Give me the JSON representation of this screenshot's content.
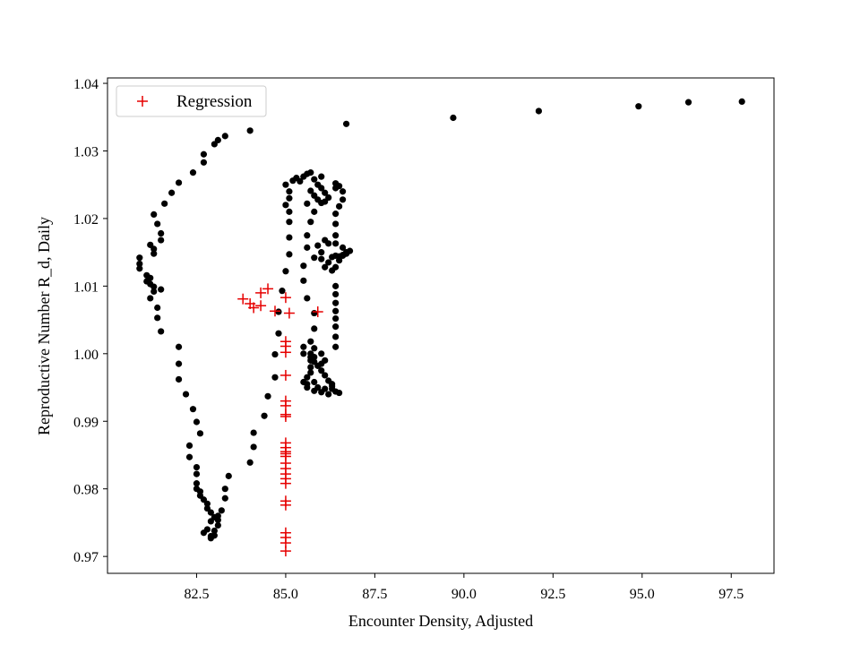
{
  "chart_data": {
    "type": "scatter",
    "title": "",
    "xlabel": "Encounter Density, Adjusted",
    "ylabel": "Reproductive Number R_d, Daily",
    "xlim": [
      80.0,
      98.7
    ],
    "ylim": [
      0.9675,
      1.0408
    ],
    "xticks": [
      82.5,
      85.0,
      87.5,
      90.0,
      92.5,
      95.0,
      97.5
    ],
    "xtick_labels": [
      "82.5",
      "85.0",
      "87.5",
      "90.0",
      "92.5",
      "95.0",
      "97.5"
    ],
    "yticks": [
      0.97,
      0.98,
      0.99,
      1.0,
      1.01,
      1.02,
      1.03,
      1.04
    ],
    "ytick_labels": [
      "0.97",
      "0.98",
      "0.99",
      "1.00",
      "1.01",
      "1.02",
      "1.03",
      "1.04"
    ],
    "grid": false,
    "legend": {
      "placement": "top-left",
      "entries": [
        "Regression"
      ]
    },
    "series": [
      {
        "marker": "dot",
        "color": "#000000",
        "points": [
          [
            97.8,
            1.0373
          ],
          [
            96.3,
            1.0372
          ],
          [
            94.9,
            1.0366
          ],
          [
            92.1,
            1.0359
          ],
          [
            89.7,
            1.0349
          ],
          [
            86.7,
            1.034
          ],
          [
            84.0,
            1.033
          ],
          [
            83.3,
            1.0322
          ],
          [
            83.1,
            1.0316
          ],
          [
            83.0,
            1.031
          ],
          [
            82.7,
            1.0295
          ],
          [
            82.7,
            1.0283
          ],
          [
            82.4,
            1.0268
          ],
          [
            82.0,
            1.0253
          ],
          [
            81.8,
            1.0238
          ],
          [
            81.6,
            1.0222
          ],
          [
            81.3,
            1.0206
          ],
          [
            81.4,
            1.0192
          ],
          [
            81.5,
            1.0178
          ],
          [
            81.5,
            1.0168
          ],
          [
            81.2,
            1.0161
          ],
          [
            81.3,
            1.0155
          ],
          [
            81.3,
            1.0148
          ],
          [
            80.9,
            1.0142
          ],
          [
            80.9,
            1.0133
          ],
          [
            80.9,
            1.0126
          ],
          [
            81.1,
            1.0116
          ],
          [
            81.2,
            1.0112
          ],
          [
            81.1,
            1.0107
          ],
          [
            81.2,
            1.0103
          ],
          [
            81.3,
            1.0099
          ],
          [
            81.5,
            1.0095
          ],
          [
            81.3,
            1.0092
          ],
          [
            81.2,
            1.0082
          ],
          [
            81.4,
            1.0068
          ],
          [
            81.4,
            1.0053
          ],
          [
            81.5,
            1.0033
          ],
          [
            82.0,
            1.001
          ],
          [
            82.0,
            0.9985
          ],
          [
            82.0,
            0.9962
          ],
          [
            82.2,
            0.994
          ],
          [
            82.4,
            0.9918
          ],
          [
            82.5,
            0.9899
          ],
          [
            82.6,
            0.9882
          ],
          [
            82.3,
            0.9864
          ],
          [
            82.3,
            0.9847
          ],
          [
            82.5,
            0.9832
          ],
          [
            82.5,
            0.9822
          ],
          [
            82.5,
            0.9808
          ],
          [
            82.5,
            0.98
          ],
          [
            82.6,
            0.9796
          ],
          [
            82.6,
            0.979
          ],
          [
            82.7,
            0.9784
          ],
          [
            82.8,
            0.9778
          ],
          [
            82.8,
            0.9771
          ],
          [
            82.9,
            0.9765
          ],
          [
            83.0,
            0.9758
          ],
          [
            82.9,
            0.9752
          ],
          [
            82.8,
            0.974
          ],
          [
            82.7,
            0.9735
          ],
          [
            82.9,
            0.973
          ],
          [
            82.9,
            0.9727
          ],
          [
            83.0,
            0.9731
          ],
          [
            83.0,
            0.9738
          ],
          [
            83.1,
            0.9746
          ],
          [
            83.1,
            0.9754
          ],
          [
            83.1,
            0.976
          ],
          [
            83.2,
            0.9768
          ],
          [
            83.3,
            0.9786
          ],
          [
            83.3,
            0.98
          ],
          [
            83.4,
            0.9819
          ],
          [
            84.0,
            0.9839
          ],
          [
            84.1,
            0.9862
          ],
          [
            84.1,
            0.9883
          ],
          [
            84.4,
            0.9908
          ],
          [
            84.5,
            0.9937
          ],
          [
            84.7,
            0.9965
          ],
          [
            84.7,
            0.9999
          ],
          [
            84.8,
            1.003
          ],
          [
            84.8,
            1.0062
          ],
          [
            84.9,
            1.0093
          ],
          [
            85.0,
            1.0122
          ],
          [
            85.1,
            1.0147
          ],
          [
            85.1,
            1.0172
          ],
          [
            85.1,
            1.0195
          ],
          [
            85.1,
            1.021
          ],
          [
            85.0,
            1.022
          ],
          [
            85.1,
            1.023
          ],
          [
            85.1,
            1.024
          ],
          [
            85.0,
            1.025
          ],
          [
            85.2,
            1.0256
          ],
          [
            85.3,
            1.026
          ],
          [
            85.4,
            1.0255
          ],
          [
            85.5,
            1.0262
          ],
          [
            85.6,
            1.0266
          ],
          [
            85.7,
            1.0268
          ],
          [
            85.8,
            1.0258
          ],
          [
            85.9,
            1.025
          ],
          [
            86.0,
            1.0262
          ],
          [
            86.0,
            1.0245
          ],
          [
            86.1,
            1.0238
          ],
          [
            85.7,
            1.0241
          ],
          [
            85.8,
            1.0234
          ],
          [
            85.9,
            1.0228
          ],
          [
            86.0,
            1.0223
          ],
          [
            86.2,
            1.0231
          ],
          [
            86.1,
            1.0225
          ],
          [
            85.8,
            1.021
          ],
          [
            85.7,
            1.0195
          ],
          [
            85.6,
            1.0175
          ],
          [
            85.6,
            1.0157
          ],
          [
            85.9,
            1.016
          ],
          [
            86.1,
            1.0168
          ],
          [
            86.2,
            1.0163
          ],
          [
            86.0,
            1.015
          ],
          [
            85.8,
            1.0142
          ],
          [
            86.0,
            1.014
          ],
          [
            86.2,
            1.0135
          ],
          [
            86.1,
            1.0128
          ],
          [
            86.3,
            1.0123
          ],
          [
            86.4,
            1.0128
          ],
          [
            86.5,
            1.0138
          ],
          [
            86.6,
            1.0145
          ],
          [
            86.7,
            1.0148
          ],
          [
            86.8,
            1.0152
          ],
          [
            86.6,
            1.0157
          ],
          [
            86.4,
            1.0163
          ],
          [
            86.4,
            1.0175
          ],
          [
            86.4,
            1.0192
          ],
          [
            86.4,
            1.0207
          ],
          [
            86.5,
            1.0218
          ],
          [
            86.6,
            1.0228
          ],
          [
            86.6,
            1.024
          ],
          [
            86.5,
            1.0248
          ],
          [
            86.4,
            1.0252
          ],
          [
            86.4,
            1.0245
          ],
          [
            85.6,
            1.0222
          ],
          [
            85.5,
            1.013
          ],
          [
            85.5,
            1.0108
          ],
          [
            85.6,
            1.0082
          ],
          [
            85.8,
            1.006
          ],
          [
            85.8,
            1.0037
          ],
          [
            85.7,
            1.0018
          ],
          [
            85.5,
            1.001
          ],
          [
            85.5,
            1.0
          ],
          [
            85.7,
            0.9995
          ],
          [
            85.8,
            0.9988
          ],
          [
            85.9,
            0.9982
          ],
          [
            86.0,
            0.9975
          ],
          [
            86.1,
            0.9968
          ],
          [
            86.2,
            0.996
          ],
          [
            86.3,
            0.9952
          ],
          [
            86.4,
            0.9944
          ],
          [
            86.5,
            0.9942
          ],
          [
            86.3,
            0.9948
          ],
          [
            86.2,
            0.994
          ],
          [
            86.0,
            0.9943
          ],
          [
            85.9,
            0.995
          ],
          [
            85.8,
            0.9958
          ],
          [
            85.6,
            0.9955
          ],
          [
            85.6,
            0.9965
          ],
          [
            85.7,
            0.9972
          ],
          [
            85.7,
            0.998
          ],
          [
            85.7,
            0.999
          ],
          [
            85.7,
            1.0
          ],
          [
            85.8,
            1.0008
          ],
          [
            86.0,
            1.0
          ],
          [
            85.8,
            0.9995
          ],
          [
            86.0,
            0.9985
          ],
          [
            86.1,
            0.999
          ],
          [
            85.5,
            0.9958
          ],
          [
            85.6,
            0.995
          ],
          [
            85.8,
            0.9945
          ],
          [
            86.1,
            0.9948
          ],
          [
            86.3,
            0.9955
          ],
          [
            86.4,
            1.001
          ],
          [
            86.4,
            1.0025
          ],
          [
            86.4,
            1.004
          ],
          [
            86.4,
            1.0052
          ],
          [
            86.4,
            1.0063
          ],
          [
            86.4,
            1.0075
          ],
          [
            86.4,
            1.0088
          ],
          [
            86.4,
            1.01
          ],
          [
            86.3,
            1.0143
          ],
          [
            86.4,
            1.0145
          ],
          [
            86.5,
            1.0144
          ],
          [
            86.6,
            1.0146
          ],
          [
            86.7,
            1.015
          ]
        ]
      },
      {
        "name": "Regression",
        "marker": "plus",
        "color": "#e60000",
        "points": [
          [
            83.8,
            1.0081
          ],
          [
            84.0,
            1.0074
          ],
          [
            84.1,
            1.0068
          ],
          [
            84.3,
            1.0071
          ],
          [
            84.3,
            1.009
          ],
          [
            84.5,
            1.0096
          ],
          [
            84.7,
            1.0063
          ],
          [
            85.0,
            1.0083
          ],
          [
            85.1,
            1.006
          ],
          [
            85.9,
            1.0062
          ],
          [
            85.0,
            1.0018
          ],
          [
            85.0,
            1.0011
          ],
          [
            85.0,
            1.0002
          ],
          [
            85.0,
            0.9968
          ],
          [
            85.0,
            0.993
          ],
          [
            85.0,
            0.9923
          ],
          [
            85.0,
            0.991
          ],
          [
            85.0,
            0.9907
          ],
          [
            85.0,
            0.9868
          ],
          [
            85.0,
            0.9861
          ],
          [
            85.0,
            0.9855
          ],
          [
            85.0,
            0.9852
          ],
          [
            85.0,
            0.9848
          ],
          [
            85.0,
            0.9838
          ],
          [
            85.0,
            0.983
          ],
          [
            85.0,
            0.9822
          ],
          [
            85.0,
            0.9815
          ],
          [
            85.0,
            0.9808
          ],
          [
            85.0,
            0.9782
          ],
          [
            85.0,
            0.9776
          ],
          [
            85.0,
            0.9735
          ],
          [
            85.0,
            0.9728
          ],
          [
            85.0,
            0.972
          ],
          [
            85.0,
            0.9708
          ]
        ]
      }
    ]
  }
}
